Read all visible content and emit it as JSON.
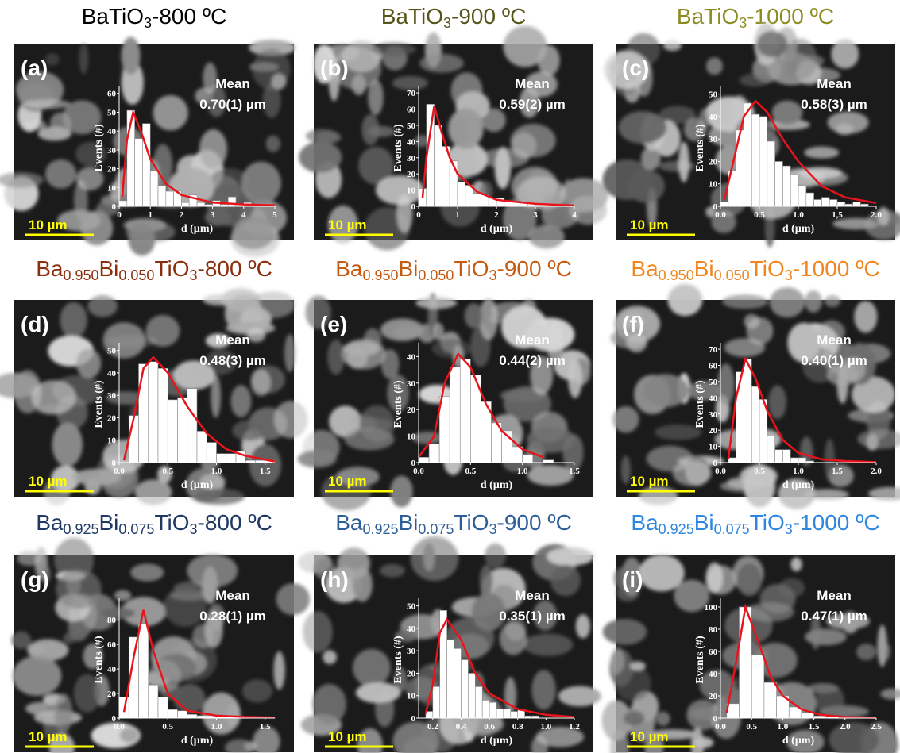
{
  "chart_data": [
    {
      "type": "histogram",
      "title": [
        "BaTiO",
        "3",
        "-800 ºC"
      ],
      "title_color": "#000000",
      "panel_label": "(a)",
      "annotations": [
        "Mean",
        "0.70(1) µm"
      ],
      "scale_bar": "10 µm",
      "xlabel": "d (µm)",
      "ylabel": "Events (#)",
      "color": "#ffffff",
      "bins": [
        0,
        0.25,
        0.5,
        0.75,
        1,
        1.25,
        1.5,
        1.75,
        2,
        2.25,
        2.5,
        2.75,
        3,
        3.25,
        3.5,
        3.75,
        4,
        4.25,
        4.5,
        4.75,
        5
      ],
      "values": [
        3,
        51,
        36,
        44,
        19,
        11,
        8,
        8,
        2,
        6,
        2,
        1,
        3,
        1,
        5,
        1,
        2,
        0,
        0,
        1
      ],
      "fit": {
        "color": "#e8141c",
        "x": [
          0.1,
          0.25,
          0.45,
          0.7,
          1,
          1.5,
          2,
          3,
          4,
          5
        ],
        "values": [
          5,
          35,
          50,
          40,
          25,
          12,
          6,
          2,
          1,
          0.5
        ]
      },
      "xlim": [
        0,
        5
      ],
      "ylim": [
        0,
        62
      ],
      "xticks": [
        0,
        1,
        2,
        3,
        4,
        5
      ],
      "yticks": [
        0,
        10,
        20,
        30,
        40,
        50,
        60
      ]
    },
    {
      "type": "histogram",
      "title": [
        "BaTiO",
        "3",
        "-900 ºC"
      ],
      "title_color": "#55551a",
      "panel_label": "(b)",
      "annotations": [
        "Mean",
        "0.59(2) µm"
      ],
      "scale_bar": "10 µm",
      "xlabel": "d (µm)",
      "ylabel": "Events (#)",
      "color": "#ffffff",
      "bins": [
        0,
        0.2,
        0.4,
        0.6,
        0.8,
        1,
        1.2,
        1.4,
        1.6,
        1.8,
        2,
        2.2,
        2.4,
        2.6,
        2.8,
        3,
        3.2,
        3.4
      ],
      "values": [
        11,
        63,
        50,
        37,
        28,
        15,
        13,
        8,
        7,
        5,
        5,
        3,
        3,
        2,
        2,
        1,
        1
      ],
      "fit": {
        "color": "#e8141c",
        "x": [
          0.1,
          0.2,
          0.4,
          0.6,
          0.8,
          1,
          1.5,
          2,
          3,
          4
        ],
        "values": [
          5,
          30,
          62,
          45,
          30,
          20,
          9,
          4,
          1.5,
          0.5
        ]
      },
      "xlim": [
        0,
        4
      ],
      "ylim": [
        0,
        72
      ],
      "xticks": [
        0,
        1,
        2,
        3,
        4
      ],
      "yticks": [
        0,
        10,
        20,
        30,
        40,
        50,
        60,
        70
      ]
    },
    {
      "type": "histogram",
      "title": [
        "BaTiO",
        "3",
        "-1000 ºC"
      ],
      "title_color": "#8c8c22",
      "panel_label": "(c)",
      "annotations": [
        "Mean",
        "0.58(3) µm"
      ],
      "scale_bar": "10 µm",
      "xlabel": "d (µm)",
      "ylabel": "Events (#)",
      "color": "#ffffff",
      "bins": [
        0,
        0.1,
        0.2,
        0.3,
        0.4,
        0.5,
        0.6,
        0.7,
        0.8,
        0.9,
        1,
        1.1,
        1.2,
        1.3,
        1.4,
        1.5,
        1.6,
        1.7,
        1.8,
        1.9
      ],
      "values": [
        2,
        16,
        34,
        46,
        41,
        40,
        29,
        20,
        18,
        14,
        9,
        6,
        3,
        4,
        3,
        2,
        1,
        2,
        1
      ],
      "fit": {
        "color": "#e8141c",
        "x": [
          0.05,
          0.2,
          0.3,
          0.45,
          0.6,
          0.8,
          1,
          1.3,
          1.6,
          2
        ],
        "values": [
          3,
          25,
          40,
          47,
          42,
          30,
          20,
          9,
          4,
          1.5
        ]
      },
      "xlim": [
        0,
        2
      ],
      "ylim": [
        0,
        52
      ],
      "xticks": [
        {
          "value": 0,
          "label": "0.0"
        },
        0.5,
        {
          "value": 1,
          "label": "1.0"
        },
        {
          "value": 1.5,
          "label": "1,5"
        },
        {
          "value": 2,
          "label": "2.0"
        }
      ],
      "yticks": [
        0,
        10,
        20,
        30,
        40,
        50
      ]
    },
    {
      "type": "histogram",
      "title": [
        "Ba",
        "0.950",
        "Bi",
        "0.050",
        "TiO",
        "3",
        "-800 ºC"
      ],
      "title_color": "#8b2e0e",
      "panel_label": "(d)",
      "annotations": [
        "Mean",
        "0.48(3) µm"
      ],
      "scale_bar": "10 µm",
      "xlabel": "d (µm)",
      "ylabel": "Events (#)",
      "color": "#ffffff",
      "bins": [
        0.1,
        0.2,
        0.3,
        0.4,
        0.5,
        0.6,
        0.7,
        0.8,
        0.9,
        1,
        1.1,
        1.2,
        1.3,
        1.4,
        1.5,
        1.6
      ],
      "values": [
        21,
        44,
        45,
        42,
        28,
        29,
        33,
        14,
        9,
        4,
        4,
        5,
        1,
        1,
        1
      ],
      "fit": {
        "color": "#e8141c",
        "x": [
          0.05,
          0.15,
          0.25,
          0.35,
          0.5,
          0.7,
          0.9,
          1.1,
          1.3,
          1.6
        ],
        "values": [
          1,
          20,
          42,
          47,
          40,
          25,
          13,
          6,
          3,
          0.5
        ]
      },
      "xlim": [
        0,
        1.6
      ],
      "ylim": [
        0,
        52
      ],
      "xticks": [
        {
          "value": 0,
          "label": "0.0"
        },
        0.5,
        {
          "value": 1,
          "label": "1.0"
        },
        1.5
      ],
      "yticks": [
        0,
        10,
        20,
        30,
        40,
        50
      ]
    },
    {
      "type": "histogram",
      "title": [
        "Ba",
        "0.950",
        "Bi",
        "0.050",
        "TiO",
        "3",
        "-900 ºC"
      ],
      "title_color": "#c55a11",
      "panel_label": "(e)",
      "annotations": [
        "Mean",
        "0.44(2) µm"
      ],
      "scale_bar": "10 µm",
      "xlabel": "d (µm)",
      "ylabel": "Events (#)",
      "color": "#ffffff",
      "bins": [
        0,
        0.1,
        0.2,
        0.3,
        0.4,
        0.5,
        0.6,
        0.7,
        0.8,
        0.9,
        1,
        1.1,
        1.2,
        1.3
      ],
      "values": [
        2,
        7,
        25,
        36,
        39,
        33,
        23,
        15,
        12,
        6,
        3,
        0,
        1
      ],
      "fit": {
        "color": "#e8141c",
        "x": [
          0,
          0.15,
          0.25,
          0.38,
          0.5,
          0.65,
          0.8,
          1,
          1.2
        ],
        "values": [
          2,
          10,
          30,
          41,
          36,
          22,
          12,
          5,
          2
        ]
      },
      "xlim": [
        0,
        1.5
      ],
      "ylim": [
        0,
        44
      ],
      "xticks": [
        {
          "value": 0,
          "label": "0.0"
        },
        0.5,
        {
          "value": 1,
          "label": "1.0"
        },
        1.5
      ],
      "yticks": [
        0,
        10,
        20,
        30,
        40
      ]
    },
    {
      "type": "histogram",
      "title": [
        "Ba",
        "0.950",
        "Bi",
        "0.050",
        "TiO",
        "3",
        "-1000 ºC"
      ],
      "title_color": "#f0871e",
      "panel_label": "(f)",
      "annotations": [
        "Mean",
        "0.40(1) µm"
      ],
      "scale_bar": "10 µm",
      "xlabel": "d (µm)",
      "ylabel": "Events (#)",
      "color": "#ffffff",
      "bins": [
        0.1,
        0.2,
        0.3,
        0.4,
        0.5,
        0.6,
        0.7,
        0.8,
        0.9,
        1,
        1.1,
        1.2
      ],
      "values": [
        3,
        56,
        64,
        47,
        39,
        17,
        8,
        8,
        3,
        3,
        1
      ],
      "fit": {
        "color": "#e8141c",
        "x": [
          0.1,
          0.2,
          0.32,
          0.45,
          0.6,
          0.8,
          1,
          1.3,
          1.6,
          2
        ],
        "values": [
          2,
          40,
          64,
          52,
          32,
          14,
          6,
          2,
          1,
          0.3
        ]
      },
      "xlim": [
        0,
        2
      ],
      "ylim": [
        0,
        72
      ],
      "xticks": [
        {
          "value": 0,
          "label": "0.0"
        },
        0.5,
        {
          "value": 1,
          "label": "1.0"
        },
        1.5,
        {
          "value": 2,
          "label": "2.0"
        }
      ],
      "yticks": [
        0,
        10,
        20,
        30,
        40,
        50,
        60,
        70
      ]
    },
    {
      "type": "histogram",
      "title": [
        "Ba",
        "0.925",
        "Bi",
        "0.075",
        "TiO",
        "3",
        "-800 ºC"
      ],
      "title_color": "#1f3864",
      "panel_label": "(g)",
      "annotations": [
        "Mean",
        "0.28(1) µm"
      ],
      "scale_bar": "10 µm",
      "xlabel": "d (µm)",
      "ylabel": "Events (#)",
      "color": "#ffffff",
      "bins": [
        0,
        0.1,
        0.2,
        0.3,
        0.4,
        0.5,
        0.6,
        0.7,
        0.8,
        0.9,
        1,
        1.1,
        1.2,
        1.3,
        1.4,
        1.5,
        1.6
      ],
      "values": [
        17,
        66,
        77,
        27,
        17,
        7,
        6,
        3,
        2,
        2,
        1,
        1,
        1,
        0,
        0,
        1
      ],
      "fit": {
        "color": "#e8141c",
        "x": [
          0.05,
          0.15,
          0.25,
          0.35,
          0.5,
          0.7,
          1,
          1.3,
          1.6
        ],
        "values": [
          5,
          50,
          88,
          55,
          20,
          6,
          2,
          1,
          0.5
        ]
      },
      "xlim": [
        0,
        1.6
      ],
      "ylim": [
        0,
        95
      ],
      "xticks": [
        {
          "value": 0,
          "label": "0.0"
        },
        0.5,
        {
          "value": 1,
          "label": "1.0"
        },
        1.5
      ],
      "yticks": [
        0,
        20,
        40,
        60,
        80
      ]
    },
    {
      "type": "histogram",
      "title": [
        "Ba",
        "0.925",
        "Bi",
        "0.075",
        "TiO",
        "3",
        "-900 ºC"
      ],
      "title_color": "#2e5e99",
      "panel_label": "(h)",
      "annotations": [
        "Mean",
        "0.35(1) µm"
      ],
      "scale_bar": "10 µm",
      "xlabel": "d (µm)",
      "ylabel": "Events (#)",
      "color": "#ffffff",
      "bins": [
        0.15,
        0.2,
        0.25,
        0.3,
        0.35,
        0.4,
        0.45,
        0.5,
        0.55,
        0.6,
        0.65,
        0.7,
        0.75,
        0.8,
        0.85,
        0.9,
        0.95
      ],
      "values": [
        3,
        14,
        48,
        35,
        31,
        26,
        20,
        14,
        8,
        7,
        4,
        4,
        3,
        4,
        1,
        1
      ],
      "fit": {
        "color": "#e8141c",
        "x": [
          0.15,
          0.2,
          0.25,
          0.3,
          0.4,
          0.5,
          0.6,
          0.8,
          1,
          1.2
        ],
        "values": [
          2,
          15,
          38,
          44,
          35,
          20,
          11,
          4,
          1.5,
          0.5
        ]
      },
      "xlim": [
        0.1,
        1.2
      ],
      "ylim": [
        0,
        52
      ],
      "xticks": [
        0.2,
        0.4,
        0.6,
        0.8,
        {
          "value": 1,
          "label": "1.0"
        },
        1.2
      ],
      "yticks": [
        0,
        10,
        20,
        30,
        40,
        50
      ]
    },
    {
      "type": "histogram",
      "title": [
        "Ba",
        "0.925",
        "Bi",
        "0.075",
        "TiO",
        "3",
        "-1000 ºC"
      ],
      "title_color": "#2e86de",
      "panel_label": "(i)",
      "annotations": [
        "Mean",
        "0.47(1) µm"
      ],
      "scale_bar": "10 µm",
      "xlabel": "d (µm)",
      "ylabel": "Events (#)",
      "color": "#ffffff",
      "bins": [
        0.1,
        0.3,
        0.5,
        0.7,
        0.9,
        1.1,
        1.3,
        1.5,
        1.7,
        1.9
      ],
      "values": [
        13,
        100,
        57,
        32,
        20,
        10,
        5,
        2,
        1
      ],
      "fit": {
        "color": "#e8141c",
        "x": [
          0.1,
          0.25,
          0.4,
          0.6,
          0.8,
          1,
          1.3,
          1.6,
          2,
          2.5
        ],
        "values": [
          5,
          50,
          100,
          70,
          38,
          20,
          8,
          3,
          1,
          0.3
        ]
      },
      "xlim": [
        0,
        2.5
      ],
      "ylim": [
        0,
        105
      ],
      "xticks": [
        {
          "value": 0,
          "label": "0.0"
        },
        0.5,
        {
          "value": 1,
          "label": "1.0"
        },
        1.5,
        {
          "value": 2,
          "label": "2.0"
        },
        2.5
      ],
      "yticks": [
        0,
        20,
        40,
        60,
        80,
        100
      ]
    }
  ]
}
